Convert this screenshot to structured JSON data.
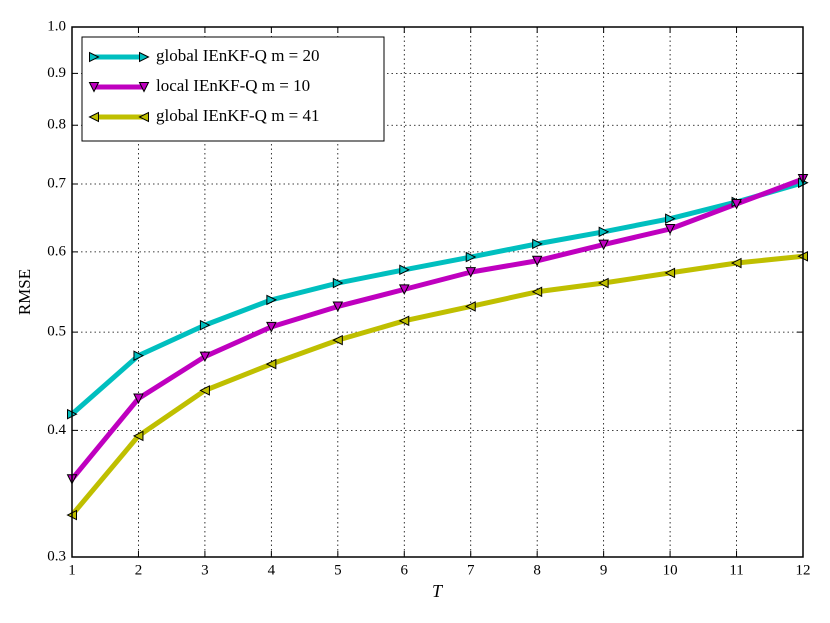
{
  "chart_data": {
    "type": "line",
    "x_label": "T",
    "y_label": "RMSE",
    "x": [
      1,
      2,
      3,
      4,
      5,
      6,
      7,
      8,
      9,
      10,
      11,
      12
    ],
    "series": [
      {
        "name": "global IEnKF-Q m = 20",
        "color": "#00bfbf",
        "marker": "triangle-right",
        "values": [
          0.415,
          0.474,
          0.508,
          0.538,
          0.559,
          0.576,
          0.593,
          0.611,
          0.628,
          0.647,
          0.672,
          0.702
        ]
      },
      {
        "name": "local IEnKF-Q m = 10",
        "color": "#bf00bf",
        "marker": "triangle-down",
        "values": [
          0.358,
          0.43,
          0.473,
          0.506,
          0.53,
          0.551,
          0.573,
          0.588,
          0.61,
          0.632,
          0.669,
          0.708
        ]
      },
      {
        "name": "global IEnKF-Q m = 41",
        "color": "#bfbf00",
        "marker": "triangle-left",
        "values": [
          0.33,
          0.395,
          0.438,
          0.465,
          0.491,
          0.513,
          0.53,
          0.548,
          0.559,
          0.572,
          0.585,
          0.594
        ]
      }
    ],
    "xlim": [
      1,
      12
    ],
    "xticks": [
      1,
      2,
      3,
      4,
      5,
      6,
      7,
      8,
      9,
      10,
      11,
      12
    ],
    "ylim": [
      0.3,
      1
    ],
    "yticks": [
      0.3,
      0.4,
      0.5,
      0.6,
      0.7,
      0.8,
      0.9,
      {
        "value": 1,
        "label": "1.0"
      }
    ],
    "y_scale": "log",
    "grid": true,
    "legend": "upper-left"
  }
}
